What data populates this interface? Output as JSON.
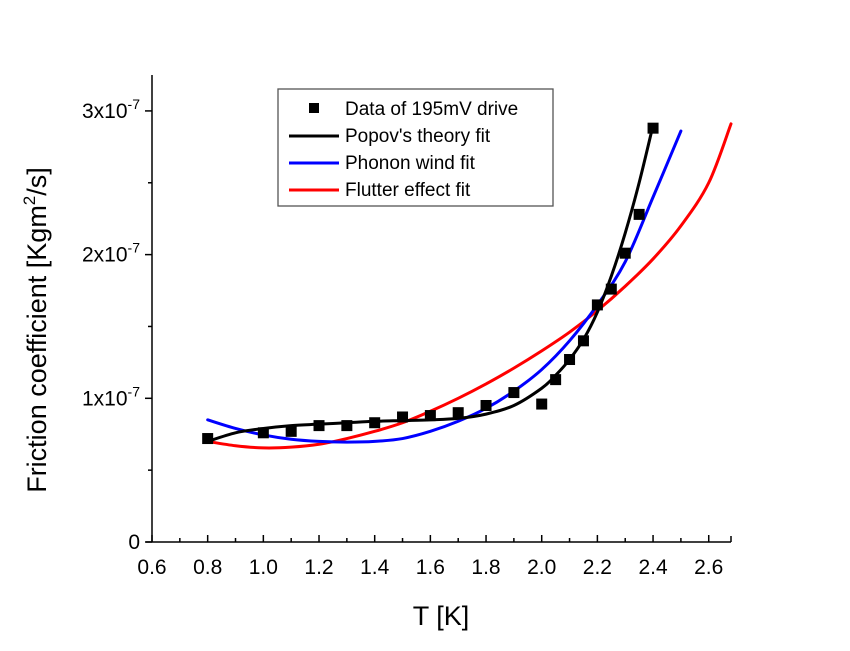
{
  "chart_data": {
    "type": "scatter",
    "title": "",
    "xlabel": "T [K]",
    "ylabel_main": "Friction coefficient [Kgm",
    "ylabel_sup": "2",
    "ylabel_tail": "/s]",
    "xlim": [
      0.6,
      2.68
    ],
    "ylim": [
      0,
      3.25e-07
    ],
    "xticks": [
      0.6,
      0.8,
      1.0,
      1.2,
      1.4,
      1.6,
      1.8,
      2.0,
      2.2,
      2.4,
      2.6
    ],
    "xtick_labels": [
      "0.6",
      "0.8",
      "1.0",
      "1.2",
      "1.4",
      "1.6",
      "1.8",
      "2.0",
      "2.2",
      "2.4",
      "2.6"
    ],
    "yticks": [
      0,
      1e-07,
      2e-07,
      3e-07
    ],
    "ytick_labels": [
      {
        "base": "0",
        "exp": ""
      },
      {
        "base": "1x10",
        "exp": "-7"
      },
      {
        "base": "2x10",
        "exp": "-7"
      },
      {
        "base": "3x10",
        "exp": "-7"
      }
    ],
    "legend_position": "top-center",
    "series": [
      {
        "name": "Data of 195mV drive",
        "kind": "markers",
        "color": "#000000",
        "x": [
          0.8,
          1.0,
          1.1,
          1.2,
          1.3,
          1.4,
          1.5,
          1.6,
          1.7,
          1.8,
          1.9,
          2.0,
          2.05,
          2.1,
          2.15,
          2.2,
          2.25,
          2.3,
          2.35,
          2.4
        ],
        "y": [
          7.2e-08,
          7.6e-08,
          7.7e-08,
          8.1e-08,
          8.1e-08,
          8.3e-08,
          8.7e-08,
          8.8e-08,
          9e-08,
          9.5e-08,
          1.04e-07,
          9.6e-08,
          1.13e-07,
          1.27e-07,
          1.4e-07,
          1.65e-07,
          1.76e-07,
          2.01e-07,
          2.28e-07,
          2.88e-07
        ]
      },
      {
        "name": "Popov's theory fit",
        "kind": "line",
        "color": "#000000",
        "x": [
          0.8,
          0.9,
          1.0,
          1.1,
          1.2,
          1.3,
          1.4,
          1.5,
          1.6,
          1.7,
          1.8,
          1.9,
          2.0,
          2.05,
          2.1,
          2.15,
          2.2,
          2.25,
          2.3,
          2.35,
          2.4
        ],
        "y": [
          7e-08,
          7.6e-08,
          7.9e-08,
          8.1e-08,
          8.2e-08,
          8.3e-08,
          8.4e-08,
          8.45e-08,
          8.5e-08,
          8.6e-08,
          8.9e-08,
          9.5e-08,
          1.07e-07,
          1.16e-07,
          1.27e-07,
          1.41e-07,
          1.6e-07,
          1.85e-07,
          2.15e-07,
          2.5e-07,
          2.9e-07
        ]
      },
      {
        "name": "Phonon wind fit",
        "kind": "line",
        "color": "#0000ff",
        "x": [
          0.8,
          0.9,
          1.0,
          1.1,
          1.2,
          1.3,
          1.4,
          1.5,
          1.6,
          1.7,
          1.8,
          1.9,
          2.0,
          2.1,
          2.2,
          2.3,
          2.4,
          2.5
        ],
        "y": [
          8.5e-08,
          7.9e-08,
          7.45e-08,
          7.15e-08,
          7e-08,
          6.95e-08,
          7e-08,
          7.2e-08,
          7.7e-08,
          8.4e-08,
          9.3e-08,
          1.05e-07,
          1.2e-07,
          1.4e-07,
          1.65e-07,
          1.95e-07,
          2.4e-07,
          2.86e-07
        ]
      },
      {
        "name": "Flutter effect fit",
        "kind": "line",
        "color": "#ff0000",
        "x": [
          0.8,
          0.9,
          1.0,
          1.1,
          1.2,
          1.3,
          1.4,
          1.5,
          1.6,
          1.7,
          1.8,
          1.9,
          2.0,
          2.1,
          2.2,
          2.3,
          2.4,
          2.5,
          2.6,
          2.68
        ],
        "y": [
          7e-08,
          6.7e-08,
          6.55e-08,
          6.6e-08,
          6.8e-08,
          7.2e-08,
          7.7e-08,
          8.3e-08,
          9.1e-08,
          1e-07,
          1.1e-07,
          1.21e-07,
          1.33e-07,
          1.46e-07,
          1.61e-07,
          1.78e-07,
          1.97e-07,
          2.2e-07,
          2.5e-07,
          2.91e-07
        ]
      }
    ]
  }
}
